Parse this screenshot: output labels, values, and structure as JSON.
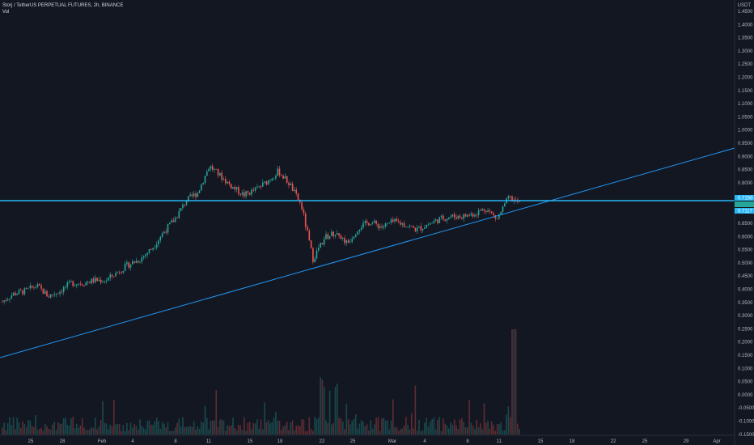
{
  "header": {
    "symbol_line": "Storj / TetherUS PERPETUAL FUTURES, 2h, BINANCE",
    "volume_label": "Vol"
  },
  "price_axis": {
    "unit": "USDT",
    "ticks": [
      "1.4500",
      "1.4000",
      "1.3500",
      "1.3000",
      "1.2500",
      "1.2000",
      "1.1500",
      "1.1000",
      "1.0500",
      "1.0000",
      "0.9500",
      "0.9000",
      "0.8500",
      "0.8000",
      "0.6500",
      "0.6000",
      "0.5500",
      "0.5000",
      "0.4500",
      "0.4000",
      "0.3500",
      "0.3000",
      "0.2500",
      "0.2000",
      "0.1500",
      "0.1000",
      "0.0500",
      "0.0000",
      "-0.0500",
      "-0.1000",
      "-0.1500"
    ]
  },
  "time_axis": {
    "ticks": [
      "25",
      "28",
      "Feb",
      "4",
      "8",
      "11",
      "15",
      "18",
      "22",
      "25",
      "Mar",
      "4",
      "8",
      "11",
      "15",
      "18",
      "22",
      "25",
      "29",
      "Apr"
    ]
  },
  "colors": {
    "background": "#131722",
    "up": "#26a69a",
    "down": "#ef5350",
    "trendline": "#2196f3",
    "hline": "#29b6f6",
    "text": "#b2b5be"
  },
  "chart_data": {
    "type": "candlestick",
    "title": "Storj / TetherUS PERPETUAL FUTURES, 2h, BINANCE",
    "series": [
      {
        "name": "Vol",
        "close_anchors": [
          {
            "date": "Jan 22",
            "close": 0.36
          },
          {
            "date": "Jan 23",
            "close": 0.39
          },
          {
            "date": "Jan 25",
            "close": 0.4
          },
          {
            "date": "Jan 26",
            "close": 0.42
          },
          {
            "date": "Jan 27",
            "close": 0.38
          },
          {
            "date": "Jan 28",
            "close": 0.4
          },
          {
            "date": "Jan 30",
            "close": 0.43
          },
          {
            "date": "Feb 1",
            "close": 0.43
          },
          {
            "date": "Feb 2",
            "close": 0.44
          },
          {
            "date": "Feb 4",
            "close": 0.44
          },
          {
            "date": "Feb 5",
            "close": 0.47
          },
          {
            "date": "Feb 6",
            "close": 0.5
          },
          {
            "date": "Feb 8",
            "close": 0.52
          },
          {
            "date": "Feb 9",
            "close": 0.56
          },
          {
            "date": "Feb 10",
            "close": 0.62
          },
          {
            "date": "Feb 11",
            "close": 0.67
          },
          {
            "date": "Feb 12",
            "close": 0.74
          },
          {
            "date": "Feb 13",
            "close": 0.77
          },
          {
            "date": "Feb 14",
            "close": 0.87
          },
          {
            "date": "Feb 15",
            "close": 0.83
          },
          {
            "date": "Feb 16",
            "close": 0.79
          },
          {
            "date": "Feb 17",
            "close": 0.76
          },
          {
            "date": "Feb 18",
            "close": 0.78
          },
          {
            "date": "Feb 19",
            "close": 0.81
          },
          {
            "date": "Feb 20",
            "close": 0.85
          },
          {
            "date": "Feb 21",
            "close": 0.8
          },
          {
            "date": "Feb 22",
            "close": 0.72
          },
          {
            "date": "Feb 23",
            "close": 0.52
          },
          {
            "date": "Feb 24",
            "close": 0.6
          },
          {
            "date": "Feb 25",
            "close": 0.62
          },
          {
            "date": "Feb 26",
            "close": 0.58
          },
          {
            "date": "Feb 27",
            "close": 0.64
          },
          {
            "date": "Feb 28",
            "close": 0.66
          },
          {
            "date": "Mar 1",
            "close": 0.64
          },
          {
            "date": "Mar 2",
            "close": 0.66
          },
          {
            "date": "Mar 3",
            "close": 0.65
          },
          {
            "date": "Mar 4",
            "close": 0.63
          },
          {
            "date": "Mar 5",
            "close": 0.65
          },
          {
            "date": "Mar 6",
            "close": 0.67
          },
          {
            "date": "Mar 7",
            "close": 0.68
          },
          {
            "date": "Mar 8",
            "close": 0.68
          },
          {
            "date": "Mar 9",
            "close": 0.69
          },
          {
            "date": "Mar 10",
            "close": 0.71
          },
          {
            "date": "Mar 11",
            "close": 0.67
          },
          {
            "date": "Mar 12",
            "close": 0.75
          },
          {
            "date": "Mar 13",
            "close": 0.73
          }
        ]
      }
    ],
    "trendline_label": "",
    "ylim": [
      -0.15,
      1.47
    ],
    "current_price_labels": [
      "0.7150",
      "0.7117"
    ]
  }
}
